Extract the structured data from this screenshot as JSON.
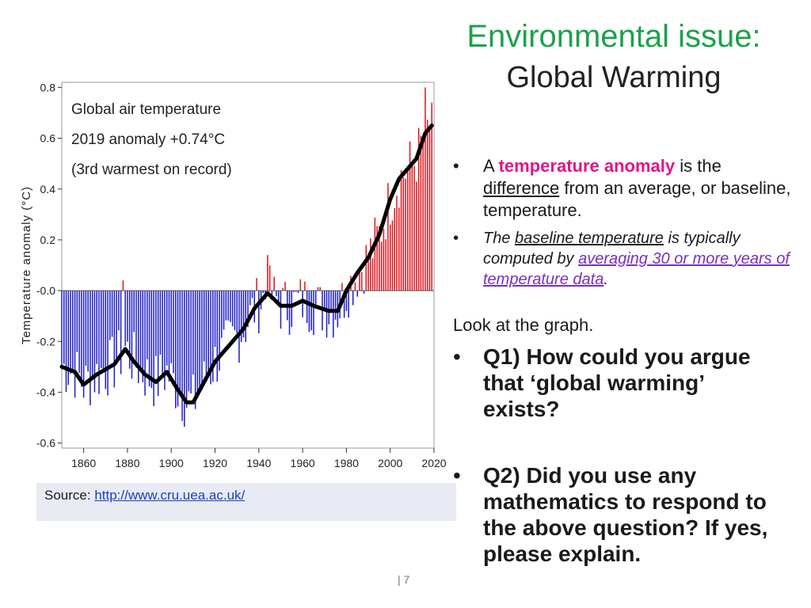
{
  "title": {
    "main": "Environmental issue:",
    "sub": "Global Warming"
  },
  "chart_data": {
    "type": "bar",
    "ylabel": "Temperature anomaly (°C)",
    "annotation": [
      "Global air temperature",
      "2019 anomaly +0.74°C",
      "(3rd warmest on record)"
    ],
    "ylim": [
      -0.62,
      0.82
    ],
    "xlim": [
      1850,
      2020
    ],
    "y_ticks": [
      0.8,
      0.6,
      0.4,
      0.2,
      0.0,
      -0.2,
      -0.4,
      -0.6
    ],
    "y_tick_labels": [
      "0.8",
      "0.6",
      "0.4",
      "0.2",
      "-0.0",
      "-0.2",
      "-0.4",
      "-0.6"
    ],
    "x_ticks": [
      1860,
      1880,
      1900,
      1920,
      1940,
      1960,
      1980,
      2000,
      2020
    ],
    "x_tick_labels": [
      "1860",
      "1880",
      "1900",
      "1920",
      "1940",
      "1960",
      "1980",
      "2000",
      "2020"
    ],
    "colors": {
      "positive": "#e0141e",
      "negative": "#1f1fc8",
      "smooth": "#000000"
    },
    "smooth_years": [
      1850,
      1856,
      1860,
      1866,
      1874,
      1879,
      1883,
      1888,
      1893,
      1898,
      1903,
      1907,
      1910,
      1915,
      1920,
      1926,
      1933,
      1938,
      1944,
      1950,
      1955,
      1960,
      1965,
      1972,
      1976,
      1980,
      1985,
      1990,
      1995,
      2000,
      2004,
      2008,
      2012,
      2016,
      2019
    ],
    "smooth_values": [
      -0.3,
      -0.32,
      -0.37,
      -0.33,
      -0.29,
      -0.23,
      -0.28,
      -0.33,
      -0.36,
      -0.32,
      -0.39,
      -0.44,
      -0.44,
      -0.36,
      -0.28,
      -0.22,
      -0.15,
      -0.07,
      -0.01,
      -0.06,
      -0.06,
      -0.04,
      -0.06,
      -0.08,
      -0.08,
      0.0,
      0.07,
      0.13,
      0.22,
      0.36,
      0.44,
      0.48,
      0.52,
      0.62,
      0.65
    ]
  },
  "source": {
    "label": "Source:",
    "url": "http://www.cru.uea.ac.uk/"
  },
  "bullets": {
    "b1_a": "A",
    "b1_kw": "temperature anomaly",
    "b1_b": "is the",
    "b1_ul": "difference",
    "b1_c": "from an average, or baseline, temperature.",
    "b2_a": "The",
    "b2_ul": "baseline temperature",
    "b2_b": "is typically computed by",
    "b2_link": "averaging 30 or more years of temperature data",
    "b2_end": "."
  },
  "look": "Look at the graph.",
  "q1": "Q1) How could you argue that  ‘global warming’ exists?",
  "q2": "Q2) Did you use any mathematics to respond to the above question? If yes, please explain.",
  "page_number": "| 7"
}
